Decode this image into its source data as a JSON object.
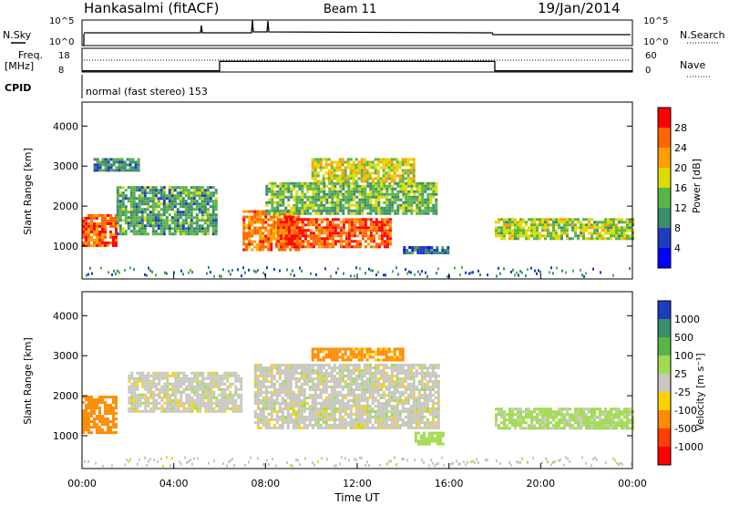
{
  "header": {
    "station": "Hankasalmi (fitACF)",
    "beam": "Beam 11",
    "date": "19/Jan/2014"
  },
  "nsky_panel": {
    "left_label": "N.Sky",
    "right_label": "N.Search",
    "left_ticks": [
      "10^5",
      "10^0"
    ],
    "right_ticks": [
      "10^5",
      "10^0"
    ]
  },
  "freq_panel": {
    "left_label": "Freq.",
    "left_unit": "[MHz]",
    "right_label": "Nave",
    "left_ticks": [
      "18",
      "8"
    ],
    "right_ticks": [
      "60",
      "0"
    ]
  },
  "cpid": {
    "label": "CPID",
    "program": "normal (fast stereo) 153"
  },
  "power_panel": {
    "ylabel": "Slant Range [km]",
    "yticks": [
      "4000",
      "3000",
      "2000",
      "1000"
    ],
    "colorbar_label": "Power [dB]",
    "colorbar_ticks": [
      "28",
      "24",
      "20",
      "16",
      "12",
      "8",
      "4"
    ],
    "colors": [
      "#0000ff",
      "#1e3cbe",
      "#3c8c6e",
      "#5ab446",
      "#dcdc00",
      "#ffa000",
      "#ff6400",
      "#ff0000"
    ]
  },
  "velocity_panel": {
    "ylabel": "Slant Range [km]",
    "yticks": [
      "4000",
      "3000",
      "2000",
      "1000"
    ],
    "colorbar_label": "Velocity [m s⁻¹]",
    "colorbar_ticks": [
      "1000",
      "500",
      "100",
      "25",
      "-25",
      "-100",
      "-500",
      "-1000"
    ],
    "colors": [
      "#1e3cbe",
      "#3c8c6e",
      "#5ab446",
      "#a0dc50",
      "#c8c8c0",
      "#ffd200",
      "#ff8c00",
      "#ff4000",
      "#ff0000"
    ]
  },
  "x_axis": {
    "ticks": [
      "00:00",
      "04:00",
      "08:00",
      "12:00",
      "16:00",
      "20:00",
      "00:00"
    ],
    "label": "Time UT"
  },
  "chart_data": {
    "type": "heatmap",
    "x_unit": "hours UT",
    "xlim": [
      0,
      24
    ],
    "ylim_km": [
      180,
      4600
    ],
    "freq_steps": [
      {
        "t_start": 0,
        "t_end": 6,
        "freq_mhz": 8.5
      },
      {
        "t_start": 6,
        "t_end": 18,
        "freq_mhz": 12.5
      },
      {
        "t_start": 18,
        "t_end": 24,
        "freq_mhz": 8.5
      }
    ],
    "power_regions": [
      {
        "t_start": 0.0,
        "t_end": 1.5,
        "r_min": 1000,
        "r_max": 1800,
        "db": 26
      },
      {
        "t_start": 1.5,
        "t_end": 5.8,
        "r_min": 1300,
        "r_max": 2500,
        "db": 12
      },
      {
        "t_start": 0.5,
        "t_end": 2.5,
        "r_min": 2900,
        "r_max": 3200,
        "db": 10
      },
      {
        "t_start": 7.0,
        "t_end": 9.5,
        "r_min": 900,
        "r_max": 1900,
        "db": 24
      },
      {
        "t_start": 8.5,
        "t_end": 13.5,
        "r_min": 1000,
        "r_max": 1700,
        "db": 27
      },
      {
        "t_start": 8.0,
        "t_end": 15.5,
        "r_min": 1800,
        "r_max": 2600,
        "db": 14
      },
      {
        "t_start": 10.0,
        "t_end": 14.5,
        "r_min": 2600,
        "r_max": 3200,
        "db": 18
      },
      {
        "t_start": 14.0,
        "t_end": 16.0,
        "r_min": 800,
        "r_max": 1000,
        "db": 8
      },
      {
        "t_start": 18.0,
        "t_end": 24.0,
        "r_min": 1200,
        "r_max": 1700,
        "db": 16
      }
    ],
    "velocity_regions": [
      {
        "t_start": 0.0,
        "t_end": 1.5,
        "r_min": 1100,
        "r_max": 2000,
        "vel": -150
      },
      {
        "t_start": 2.0,
        "t_end": 7.0,
        "r_min": 1600,
        "r_max": 2600,
        "vel": 0
      },
      {
        "t_start": 7.5,
        "t_end": 15.5,
        "r_min": 1200,
        "r_max": 2800,
        "vel": 0
      },
      {
        "t_start": 10.0,
        "t_end": 14.0,
        "r_min": 2900,
        "r_max": 3200,
        "vel": -120
      },
      {
        "t_start": 14.5,
        "t_end": 15.8,
        "r_min": 800,
        "r_max": 1100,
        "vel": 60
      },
      {
        "t_start": 18.0,
        "t_end": 24.0,
        "r_min": 1200,
        "r_max": 1700,
        "vel": 40
      }
    ]
  }
}
